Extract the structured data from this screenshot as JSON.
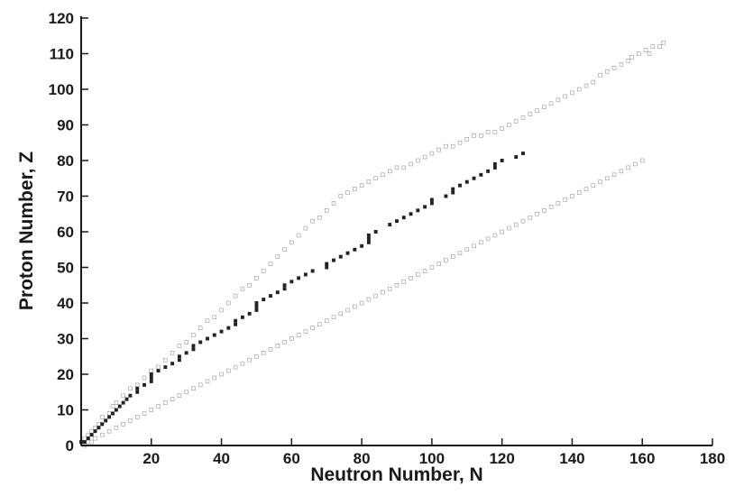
{
  "chart_data": {
    "type": "scatter",
    "title": "",
    "xlabel": "Neutron Number, N",
    "ylabel": "Proton Number, Z",
    "xlim": [
      0,
      180
    ],
    "ylim": [
      0,
      120
    ],
    "x_ticks": [
      20,
      40,
      60,
      80,
      100,
      120,
      140,
      160,
      180
    ],
    "y_ticks": [
      0,
      10,
      20,
      30,
      40,
      50,
      60,
      70,
      80,
      90,
      100,
      110,
      120
    ],
    "grid": false,
    "legend": "none",
    "colors": {
      "known_nuclide": "#999999",
      "stable_nuclide": "#222222",
      "axis": "#1a1a1a"
    },
    "series": [
      {
        "marker": "hollow-square",
        "description_of_band": "known (unstable) nuclides",
        "points": [
          [
            1,
            0
          ],
          [
            2,
            1
          ],
          [
            3,
            1
          ],
          [
            4,
            2
          ],
          [
            6,
            3
          ],
          [
            8,
            4
          ],
          [
            10,
            5
          ],
          [
            12,
            6
          ],
          [
            14,
            7
          ],
          [
            16,
            8
          ],
          [
            18,
            9
          ],
          [
            20,
            10
          ],
          [
            22,
            11
          ],
          [
            24,
            12
          ],
          [
            26,
            13
          ],
          [
            28,
            14
          ],
          [
            30,
            15
          ],
          [
            32,
            16
          ],
          [
            34,
            17
          ],
          [
            36,
            18
          ],
          [
            38,
            19
          ],
          [
            40,
            20
          ],
          [
            42,
            21
          ],
          [
            44,
            22
          ],
          [
            46,
            23
          ],
          [
            48,
            24
          ],
          [
            50,
            25
          ],
          [
            52,
            26
          ],
          [
            54,
            27
          ],
          [
            56,
            28
          ],
          [
            58,
            29
          ],
          [
            60,
            30
          ],
          [
            62,
            31
          ],
          [
            64,
            32
          ],
          [
            66,
            33
          ],
          [
            68,
            34
          ],
          [
            70,
            35
          ],
          [
            72,
            36
          ],
          [
            74,
            37
          ],
          [
            76,
            38
          ],
          [
            78,
            39
          ],
          [
            80,
            40
          ],
          [
            82,
            41
          ],
          [
            84,
            42
          ],
          [
            86,
            43
          ],
          [
            88,
            44
          ],
          [
            90,
            45
          ],
          [
            92,
            46
          ],
          [
            94,
            47
          ],
          [
            96,
            48
          ],
          [
            98,
            49
          ],
          [
            100,
            50
          ],
          [
            102,
            51
          ],
          [
            104,
            52
          ],
          [
            106,
            53
          ],
          [
            108,
            54
          ],
          [
            110,
            55
          ],
          [
            112,
            56
          ],
          [
            114,
            57
          ],
          [
            116,
            58
          ],
          [
            118,
            59
          ],
          [
            120,
            60
          ],
          [
            122,
            61
          ],
          [
            124,
            62
          ],
          [
            126,
            63
          ],
          [
            128,
            64
          ],
          [
            130,
            65
          ],
          [
            132,
            66
          ],
          [
            134,
            67
          ],
          [
            136,
            68
          ],
          [
            138,
            69
          ],
          [
            140,
            70
          ],
          [
            142,
            71
          ],
          [
            144,
            72
          ],
          [
            146,
            73
          ],
          [
            148,
            74
          ],
          [
            150,
            75
          ],
          [
            152,
            76
          ],
          [
            154,
            77
          ],
          [
            156,
            78
          ],
          [
            158,
            79
          ],
          [
            160,
            80
          ],
          [
            1,
            2
          ],
          [
            2,
            3
          ],
          [
            3,
            4
          ],
          [
            4,
            5
          ],
          [
            5,
            6
          ],
          [
            6,
            8
          ],
          [
            8,
            9
          ],
          [
            9,
            11
          ],
          [
            10,
            12
          ],
          [
            12,
            14
          ],
          [
            14,
            16
          ],
          [
            16,
            17
          ],
          [
            18,
            19
          ],
          [
            20,
            21
          ],
          [
            22,
            22
          ],
          [
            24,
            24
          ],
          [
            26,
            26
          ],
          [
            28,
            28
          ],
          [
            30,
            29
          ],
          [
            32,
            31
          ],
          [
            34,
            33
          ],
          [
            36,
            35
          ],
          [
            38,
            36
          ],
          [
            40,
            38
          ],
          [
            42,
            40
          ],
          [
            44,
            42
          ],
          [
            46,
            44
          ],
          [
            48,
            45
          ],
          [
            50,
            47
          ],
          [
            52,
            49
          ],
          [
            54,
            51
          ],
          [
            56,
            53
          ],
          [
            58,
            55
          ],
          [
            60,
            57
          ],
          [
            62,
            59
          ],
          [
            64,
            61
          ],
          [
            66,
            63
          ],
          [
            68,
            64
          ],
          [
            70,
            66
          ],
          [
            72,
            68
          ],
          [
            74,
            70
          ],
          [
            76,
            71
          ],
          [
            78,
            72
          ],
          [
            80,
            73
          ],
          [
            82,
            74
          ],
          [
            84,
            75
          ],
          [
            86,
            76
          ],
          [
            88,
            77
          ],
          [
            90,
            78
          ],
          [
            92,
            78
          ],
          [
            94,
            79
          ],
          [
            96,
            80
          ],
          [
            98,
            81
          ],
          [
            100,
            82
          ],
          [
            102,
            83
          ],
          [
            104,
            84
          ],
          [
            106,
            84
          ],
          [
            108,
            85
          ],
          [
            110,
            86
          ],
          [
            112,
            87
          ],
          [
            114,
            87
          ],
          [
            116,
            88
          ],
          [
            118,
            88
          ],
          [
            120,
            89
          ],
          [
            122,
            90
          ],
          [
            124,
            91
          ],
          [
            126,
            92
          ],
          [
            128,
            93
          ],
          [
            130,
            94
          ],
          [
            132,
            95
          ],
          [
            134,
            96
          ],
          [
            136,
            97
          ],
          [
            138,
            98
          ],
          [
            140,
            99
          ],
          [
            142,
            100
          ],
          [
            144,
            101
          ],
          [
            146,
            102
          ],
          [
            148,
            104
          ],
          [
            150,
            105
          ],
          [
            152,
            106
          ],
          [
            154,
            107
          ],
          [
            156,
            108
          ],
          [
            157,
            109
          ],
          [
            159,
            110
          ],
          [
            161,
            111
          ],
          [
            162,
            110
          ],
          [
            163,
            112
          ],
          [
            165,
            112
          ],
          [
            166,
            113
          ]
        ]
      },
      {
        "marker": "filled-square",
        "description_of_band": "stable nuclides",
        "points": [
          [
            0,
            1
          ],
          [
            1,
            1
          ],
          [
            2,
            2
          ],
          [
            3,
            3
          ],
          [
            4,
            4
          ],
          [
            5,
            5
          ],
          [
            6,
            6
          ],
          [
            7,
            7
          ],
          [
            8,
            8
          ],
          [
            9,
            9
          ],
          [
            10,
            10
          ],
          [
            11,
            11
          ],
          [
            12,
            12
          ],
          [
            13,
            13
          ],
          [
            14,
            14
          ],
          [
            16,
            15
          ],
          [
            16,
            16
          ],
          [
            18,
            17
          ],
          [
            20,
            18
          ],
          [
            20,
            19
          ],
          [
            20,
            20
          ],
          [
            22,
            21
          ],
          [
            24,
            22
          ],
          [
            26,
            23
          ],
          [
            28,
            24
          ],
          [
            28,
            25
          ],
          [
            30,
            26
          ],
          [
            32,
            27
          ],
          [
            32,
            28
          ],
          [
            34,
            29
          ],
          [
            36,
            30
          ],
          [
            38,
            31
          ],
          [
            40,
            32
          ],
          [
            42,
            33
          ],
          [
            44,
            34
          ],
          [
            44,
            35
          ],
          [
            46,
            36
          ],
          [
            48,
            37
          ],
          [
            50,
            38
          ],
          [
            50,
            39
          ],
          [
            50,
            40
          ],
          [
            52,
            41
          ],
          [
            54,
            42
          ],
          [
            56,
            43
          ],
          [
            58,
            44
          ],
          [
            58,
            45
          ],
          [
            60,
            46
          ],
          [
            62,
            47
          ],
          [
            64,
            48
          ],
          [
            66,
            49
          ],
          [
            70,
            50
          ],
          [
            70,
            51
          ],
          [
            72,
            52
          ],
          [
            74,
            53
          ],
          [
            76,
            54
          ],
          [
            78,
            55
          ],
          [
            80,
            56
          ],
          [
            82,
            57
          ],
          [
            82,
            58
          ],
          [
            82,
            59
          ],
          [
            84,
            60
          ],
          [
            88,
            62
          ],
          [
            90,
            63
          ],
          [
            92,
            64
          ],
          [
            94,
            65
          ],
          [
            96,
            66
          ],
          [
            98,
            67
          ],
          [
            100,
            68
          ],
          [
            100,
            69
          ],
          [
            104,
            70
          ],
          [
            106,
            71
          ],
          [
            106,
            72
          ],
          [
            108,
            73
          ],
          [
            110,
            74
          ],
          [
            112,
            75
          ],
          [
            114,
            76
          ],
          [
            116,
            77
          ],
          [
            118,
            78
          ],
          [
            118,
            79
          ],
          [
            120,
            80
          ],
          [
            124,
            81
          ],
          [
            126,
            82
          ]
        ]
      }
    ]
  }
}
